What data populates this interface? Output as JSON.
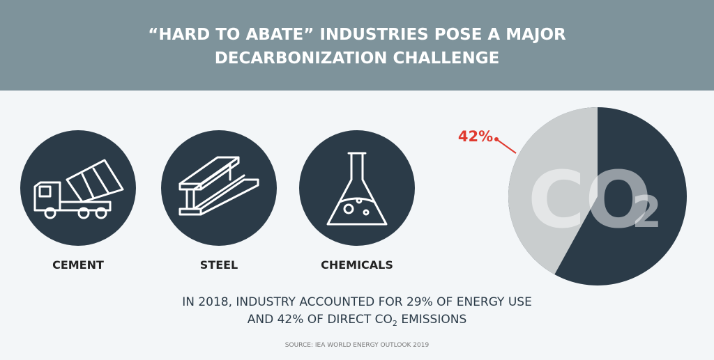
{
  "header": {
    "title_lines": [
      "“HARD TO ABATE” INDUSTRIES POSE A MAJOR",
      "DECARBONIZATION CHALLENGE"
    ]
  },
  "industries": [
    {
      "label": "CEMENT"
    },
    {
      "label": "STEEL"
    },
    {
      "label": "CHEMICALS"
    }
  ],
  "pie": {
    "value": 42,
    "label": "42%",
    "center_text": "CO",
    "center_subscript": "2"
  },
  "statement": {
    "line1": "IN 2018, INDUSTRY ACCOUNTED FOR 29% OF ENERGY USE",
    "line2": "AND 42% OF DIRECT CO",
    "line2_subscript": "2",
    "line2_end": " EMISSIONS"
  },
  "source": "SOURCE: IEA WORLD ENERGY OUTLOOK 2019"
}
